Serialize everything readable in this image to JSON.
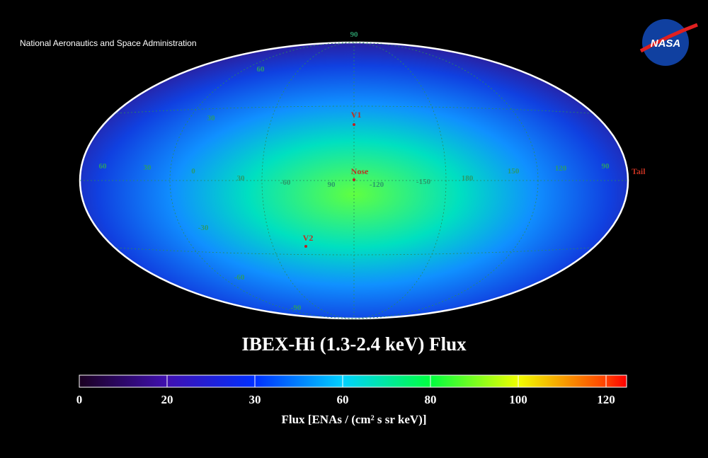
{
  "header": {
    "agency": "National Aeronautics and Space Administration",
    "logo": "NASA"
  },
  "map": {
    "labels": [
      "90",
      "60",
      "30",
      "60",
      "30",
      "0",
      "30",
      "-60",
      "90",
      "-120",
      "-150",
      "180",
      "150",
      "120",
      "90",
      "-30",
      "-60",
      "-90"
    ],
    "markers": [
      "V1",
      "Nose",
      "V2",
      "Tail"
    ]
  },
  "title": "IBEX-Hi (1.3-2.4 keV) Flux",
  "colorbar": {
    "ticks": [
      0,
      20,
      30,
      60,
      80,
      100,
      120
    ],
    "colors": [
      "#1a0020",
      "#4010b0",
      "#0030ff",
      "#00d0ff",
      "#00ff40",
      "#f0ff00",
      "#ff4000",
      "#ff0000"
    ],
    "label": "Flux [ENAs /  (cm² s sr keV)]"
  }
}
